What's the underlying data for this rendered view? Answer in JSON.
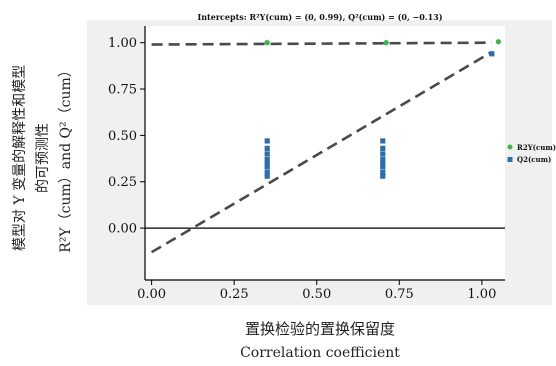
{
  "chart_data": {
    "type": "scatter",
    "title": "Intercepts: R²Y(cum) = (0, 0.99), Q²(cum) = (0, −0.13)",
    "xlabel_cn": "置换检验的置换保留度",
    "xlabel_en": "Correlation  coefficient",
    "ylabel_cn_line1": "模型对 Y 变量的解释性和模型",
    "ylabel_cn_line2": "的可预测性",
    "ylabel_line3": "R²Y（cum）and Q²（cum）",
    "xlim": [
      -0.02,
      1.07
    ],
    "ylim": [
      -0.28,
      1.09
    ],
    "x_ticks": [
      0.0,
      0.25,
      0.5,
      0.75,
      1.0
    ],
    "x_tick_labels": [
      "0.00",
      "0.25",
      "0.50",
      "0.75",
      "1.00"
    ],
    "y_ticks": [
      0.0,
      0.25,
      0.5,
      0.75,
      1.0
    ],
    "y_tick_labels": [
      "0.00",
      "0.25",
      "0.50",
      "0.75",
      "1.00"
    ],
    "grid": false,
    "legend_position": "right",
    "series": [
      {
        "name": "R2Y(cum)",
        "color": "#3cb44b",
        "marker": "circle",
        "points": [
          [
            0.35,
            1.0
          ],
          [
            0.35,
            1.0
          ],
          [
            0.71,
            1.0
          ],
          [
            0.71,
            1.0
          ],
          [
            1.05,
            1.005
          ]
        ]
      },
      {
        "name": "Q2(cum)",
        "color": "#2e6ea6",
        "marker": "square",
        "points": [
          [
            0.35,
            0.47
          ],
          [
            0.35,
            0.43
          ],
          [
            0.35,
            0.4
          ],
          [
            0.35,
            0.37
          ],
          [
            0.35,
            0.35
          ],
          [
            0.35,
            0.33
          ],
          [
            0.35,
            0.3
          ],
          [
            0.35,
            0.28
          ],
          [
            0.7,
            0.47
          ],
          [
            0.7,
            0.43
          ],
          [
            0.7,
            0.4
          ],
          [
            0.7,
            0.37
          ],
          [
            0.7,
            0.35
          ],
          [
            0.7,
            0.33
          ],
          [
            0.7,
            0.3
          ],
          [
            0.7,
            0.28
          ],
          [
            1.03,
            0.94
          ]
        ]
      }
    ],
    "regression_lines": [
      {
        "series": "R2Y(cum)",
        "x": [
          0.0,
          1.03
        ],
        "y": [
          0.99,
          1.0
        ]
      },
      {
        "series": "Q2(cum)",
        "x": [
          0.0,
          1.03
        ],
        "y": [
          -0.13,
          0.95
        ]
      }
    ]
  }
}
